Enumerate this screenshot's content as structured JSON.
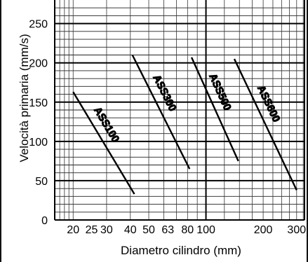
{
  "chart_data": {
    "type": "line",
    "xlabel": "Diametro cilindro (mm)",
    "ylabel": "Velocità primaria (mm/s)",
    "x_scale": "log",
    "xlim": [
      16,
      330
    ],
    "ylim": [
      0,
      280
    ],
    "grid": true,
    "x_tick_labels": [
      "20",
      "25",
      "30",
      "40",
      "50",
      "63",
      "80",
      "100",
      "200",
      "300"
    ],
    "x_tick_values": [
      20,
      25,
      30,
      40,
      50,
      63,
      80,
      100,
      200,
      300
    ],
    "y_tick_labels": [
      "0",
      "50",
      "100",
      "150",
      "200",
      "250"
    ],
    "y_tick_values": [
      0,
      50,
      100,
      150,
      200,
      250
    ],
    "series": [
      {
        "name": "ASS100",
        "x": [
          20,
          42
        ],
        "y": [
          163,
          33
        ]
      },
      {
        "name": "ASS300",
        "x": [
          41,
          82
        ],
        "y": [
          210,
          65
        ]
      },
      {
        "name": "ASS500",
        "x": [
          84,
          148
        ],
        "y": [
          207,
          75
        ]
      },
      {
        "name": "ASS600",
        "x": [
          141,
          300
        ],
        "y": [
          205,
          38
        ]
      }
    ]
  }
}
